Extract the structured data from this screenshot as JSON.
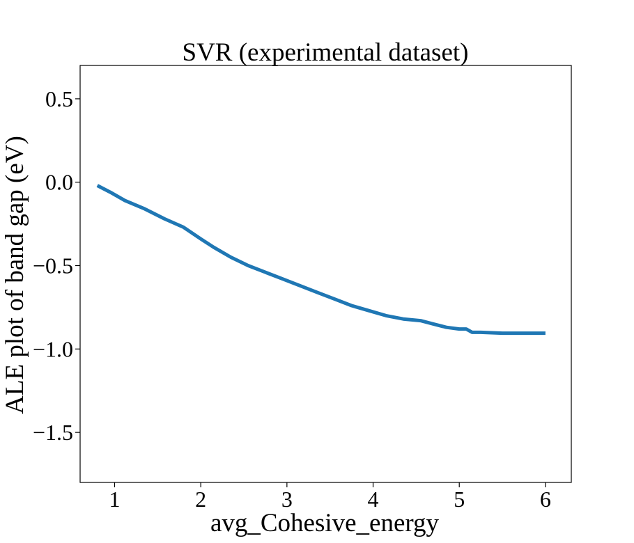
{
  "chart_data": {
    "type": "line",
    "title": "SVR (experimental dataset)",
    "xlabel": "avg_Cohesive_energy",
    "ylabel": "ALE plot of band gap (eV)",
    "xlim": [
      0.6,
      6.3
    ],
    "ylim": [
      -1.8,
      0.7
    ],
    "xticks": [
      1,
      2,
      3,
      4,
      5,
      6
    ],
    "xtick_labels": [
      "1",
      "2",
      "3",
      "4",
      "5",
      "6"
    ],
    "yticks": [
      0.5,
      0.0,
      -0.5,
      -1.0,
      -1.5
    ],
    "ytick_labels": [
      "0.5",
      "0.0",
      "−0.5",
      "−1.0",
      "−1.5"
    ],
    "grid": false,
    "series": [
      {
        "color": "#1f77b4",
        "x": [
          0.8,
          0.95,
          1.12,
          1.35,
          1.58,
          1.8,
          2.0,
          2.15,
          2.35,
          2.55,
          2.75,
          2.95,
          3.15,
          3.35,
          3.55,
          3.75,
          3.95,
          4.15,
          4.35,
          4.55,
          4.7,
          4.85,
          5.0,
          5.08,
          5.15,
          5.25,
          5.5,
          5.75,
          6.0
        ],
        "y": [
          -0.02,
          -0.06,
          -0.11,
          -0.16,
          -0.22,
          -0.27,
          -0.34,
          -0.39,
          -0.45,
          -0.5,
          -0.54,
          -0.58,
          -0.62,
          -0.66,
          -0.7,
          -0.74,
          -0.77,
          -0.8,
          -0.82,
          -0.83,
          -0.85,
          -0.87,
          -0.88,
          -0.88,
          -0.9,
          -0.9,
          -0.905,
          -0.905,
          -0.905
        ]
      }
    ]
  }
}
